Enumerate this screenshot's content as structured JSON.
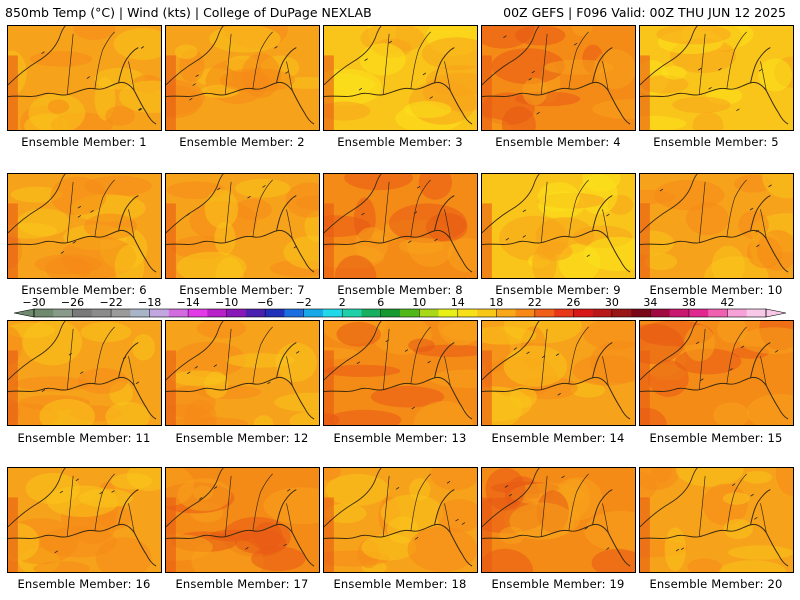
{
  "header": {
    "left": "850mb Temp (°C) | Wind (kts) | College of DuPage NEXLAB",
    "right": "00Z GEFS | F096 Valid: 00Z THU JUN 12 2025"
  },
  "members": [
    {
      "label": "Ensemble Member: 1",
      "tone": "warm"
    },
    {
      "label": "Ensemble Member: 2",
      "tone": "warm"
    },
    {
      "label": "Ensemble Member: 3",
      "tone": "cool"
    },
    {
      "label": "Ensemble Member: 4",
      "tone": "hot"
    },
    {
      "label": "Ensemble Member: 5",
      "tone": "cool"
    },
    {
      "label": "Ensemble Member: 6",
      "tone": "warm"
    },
    {
      "label": "Ensemble Member: 7",
      "tone": "warm"
    },
    {
      "label": "Ensemble Member: 8",
      "tone": "hot"
    },
    {
      "label": "Ensemble Member: 9",
      "tone": "cool"
    },
    {
      "label": "Ensemble Member: 10",
      "tone": "warm"
    },
    {
      "label": "Ensemble Member: 11",
      "tone": "warm"
    },
    {
      "label": "Ensemble Member: 12",
      "tone": "warm"
    },
    {
      "label": "Ensemble Member: 13",
      "tone": "hot"
    },
    {
      "label": "Ensemble Member: 14",
      "tone": "warm"
    },
    {
      "label": "Ensemble Member: 15",
      "tone": "hot"
    },
    {
      "label": "Ensemble Member: 16",
      "tone": "warm"
    },
    {
      "label": "Ensemble Member: 17",
      "tone": "hot"
    },
    {
      "label": "Ensemble Member: 18",
      "tone": "warm"
    },
    {
      "label": "Ensemble Member: 19",
      "tone": "hot"
    },
    {
      "label": "Ensemble Member: 20",
      "tone": "warm"
    }
  ],
  "colorbar": {
    "tick_labels": [
      "−30",
      "−26",
      "−22",
      "−18",
      "−14",
      "−10",
      "−6",
      "−2",
      "2",
      "6",
      "10",
      "14",
      "18",
      "22",
      "26",
      "30",
      "34",
      "38",
      "42"
    ],
    "colors": [
      "#6f8a6f",
      "#8a9a8a",
      "#7a7a7a",
      "#8c8c8c",
      "#9a9a9a",
      "#a8b4c8",
      "#c2a6e0",
      "#d26ae0",
      "#e23ae6",
      "#b820c8",
      "#8818b8",
      "#4a20b0",
      "#2030b8",
      "#1a6ee0",
      "#18a8e8",
      "#20d8e8",
      "#20d0a8",
      "#18b060",
      "#189830",
      "#50b818",
      "#a8d818",
      "#e8f018",
      "#f8e018",
      "#f8c818",
      "#f8a818",
      "#f88818",
      "#f06018",
      "#e83818",
      "#d81818",
      "#b81818",
      "#981818",
      "#780818",
      "#a00840",
      "#c81870",
      "#e02890",
      "#f060b0",
      "#f8a0d8",
      "#f8c8e8"
    ]
  },
  "palette": {
    "hot": "#e85a14",
    "warm": "#f7a21b",
    "mid": "#f58b17",
    "cool": "#f9c51a",
    "pale": "#fbe21b"
  }
}
